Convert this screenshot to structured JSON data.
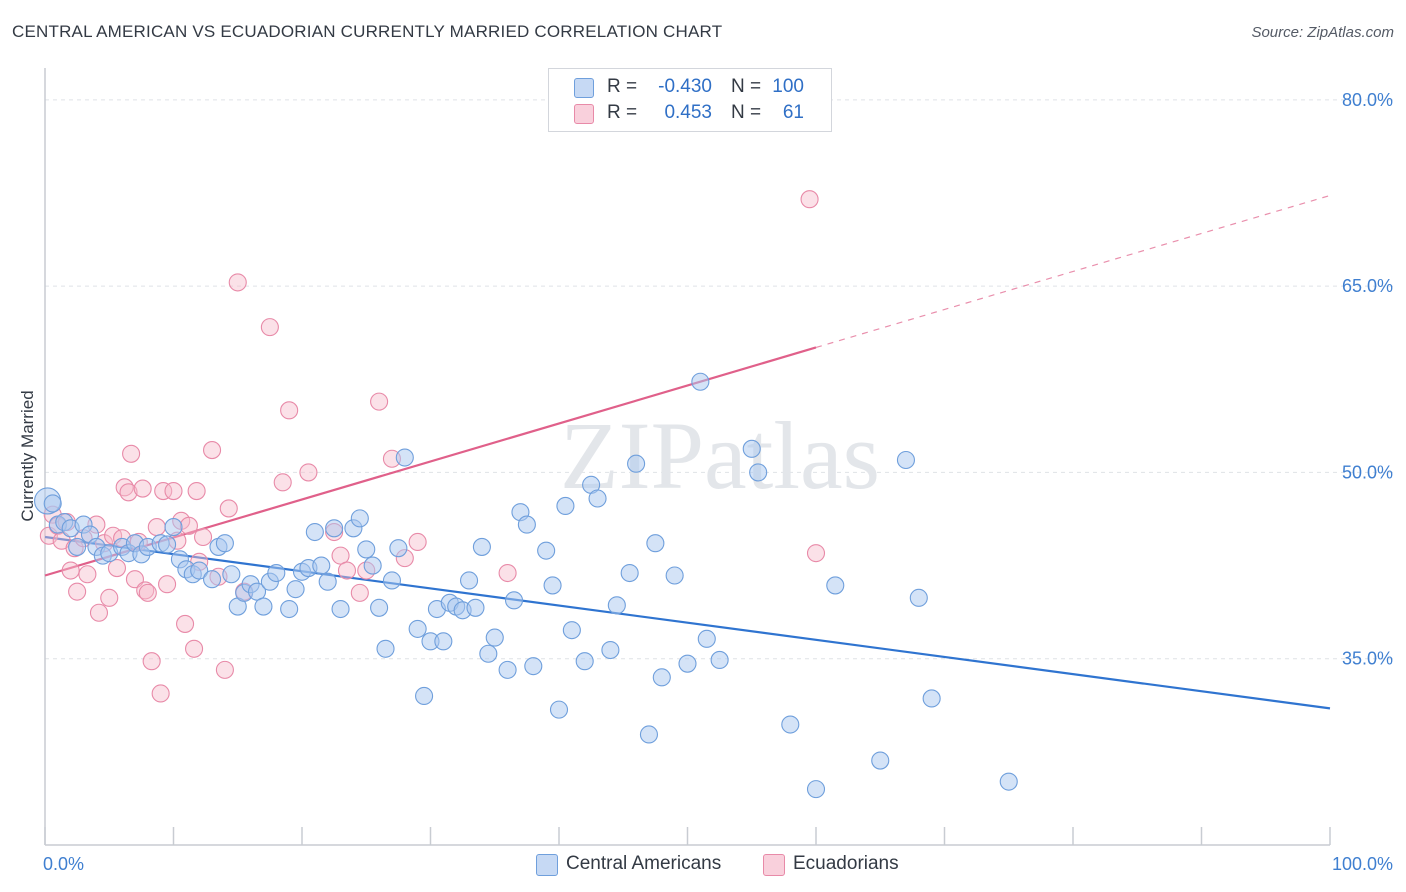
{
  "title": "CENTRAL AMERICAN VS ECUADORIAN CURRENTLY MARRIED CORRELATION CHART",
  "source": "Source: ZipAtlas.com",
  "watermark": "ZIPatlas",
  "colors": {
    "blue_fill": "#a9c8f0",
    "blue_stroke": "#6f9fdc",
    "blue_line": "#2f74d0",
    "pink_fill": "#f6bccd",
    "pink_stroke": "#e88aa8",
    "pink_line": "#e0608a",
    "tick_text": "#3f7fd0",
    "grid": "#dfe2e6"
  },
  "legend": {
    "rows": [
      {
        "r_label": "R = ",
        "r_value": "-0.430",
        "n_label": "N = ",
        "n_value": "100",
        "series": "blue"
      },
      {
        "r_label": "R = ",
        "r_value": "0.453",
        "n_label": "N = ",
        "n_value": "61",
        "series": "pink"
      }
    ]
  },
  "bottom_legend": [
    {
      "label": "Central Americans",
      "series": "blue"
    },
    {
      "label": "Ecuadorians",
      "series": "pink"
    }
  ],
  "chart_data": {
    "type": "scatter",
    "ylabel": "Currently Married",
    "xlabel": "",
    "x_ticks": [
      "0.0%",
      "100.0%"
    ],
    "y_ticks": [
      "80.0%",
      "65.0%",
      "50.0%",
      "35.0%"
    ],
    "y_tick_values": [
      80,
      65,
      50,
      35
    ],
    "xlim": [
      0,
      100
    ],
    "ylim": [
      20,
      82
    ],
    "grid": true,
    "legend_position": "top-center",
    "series": [
      {
        "name": "Central Americans",
        "color": "blue",
        "r": -0.43,
        "n": 100,
        "trend": {
          "x0": 0,
          "y0": 44.8,
          "x1": 100,
          "y1": 31.0
        },
        "points": [
          [
            0.2,
            47.7
          ],
          [
            0.6,
            47.5
          ],
          [
            1.0,
            45.8
          ],
          [
            1.5,
            46.0
          ],
          [
            2.0,
            45.5
          ],
          [
            2.5,
            44.0
          ],
          [
            3.0,
            45.8
          ],
          [
            3.5,
            45.0
          ],
          [
            4.0,
            44.0
          ],
          [
            4.5,
            43.3
          ],
          [
            5.0,
            43.5
          ],
          [
            6.0,
            44.0
          ],
          [
            6.5,
            43.5
          ],
          [
            7.0,
            44.3
          ],
          [
            7.5,
            43.4
          ],
          [
            8.0,
            44.0
          ],
          [
            9.0,
            44.3
          ],
          [
            9.5,
            44.2
          ],
          [
            10.0,
            45.6
          ],
          [
            10.5,
            43.0
          ],
          [
            11.0,
            42.2
          ],
          [
            11.5,
            41.8
          ],
          [
            12.0,
            42.1
          ],
          [
            13.0,
            41.4
          ],
          [
            13.5,
            44.0
          ],
          [
            14.0,
            44.3
          ],
          [
            14.5,
            41.8
          ],
          [
            15.0,
            39.2
          ],
          [
            15.5,
            40.3
          ],
          [
            16.0,
            41.0
          ],
          [
            16.5,
            40.4
          ],
          [
            17.0,
            39.2
          ],
          [
            17.5,
            41.2
          ],
          [
            18.0,
            41.9
          ],
          [
            19.0,
            39.0
          ],
          [
            19.5,
            40.6
          ],
          [
            20.0,
            42.0
          ],
          [
            20.5,
            42.3
          ],
          [
            21.0,
            45.2
          ],
          [
            21.5,
            42.5
          ],
          [
            22.0,
            41.2
          ],
          [
            22.5,
            45.5
          ],
          [
            23.0,
            39.0
          ],
          [
            24.0,
            45.5
          ],
          [
            24.5,
            46.3
          ],
          [
            25.0,
            43.8
          ],
          [
            25.5,
            42.5
          ],
          [
            26.0,
            39.1
          ],
          [
            26.5,
            35.8
          ],
          [
            27.0,
            41.3
          ],
          [
            27.5,
            43.9
          ],
          [
            28.0,
            51.2
          ],
          [
            29.0,
            37.4
          ],
          [
            29.5,
            32.0
          ],
          [
            30.0,
            36.4
          ],
          [
            30.5,
            39.0
          ],
          [
            31.0,
            36.4
          ],
          [
            31.5,
            39.5
          ],
          [
            32.0,
            39.2
          ],
          [
            32.5,
            38.9
          ],
          [
            33.0,
            41.3
          ],
          [
            33.5,
            39.1
          ],
          [
            34.0,
            44.0
          ],
          [
            34.5,
            35.4
          ],
          [
            35.0,
            36.7
          ],
          [
            36.0,
            34.1
          ],
          [
            36.5,
            39.7
          ],
          [
            37.0,
            46.8
          ],
          [
            37.5,
            45.8
          ],
          [
            38.0,
            34.4
          ],
          [
            39.0,
            43.7
          ],
          [
            39.5,
            40.9
          ],
          [
            40.0,
            30.9
          ],
          [
            40.5,
            47.3
          ],
          [
            41.0,
            37.3
          ],
          [
            42.0,
            34.8
          ],
          [
            42.5,
            49.0
          ],
          [
            43.0,
            47.9
          ],
          [
            44.0,
            35.7
          ],
          [
            44.5,
            39.3
          ],
          [
            45.5,
            41.9
          ],
          [
            46.0,
            50.7
          ],
          [
            47.0,
            28.9
          ],
          [
            47.5,
            44.3
          ],
          [
            48.0,
            33.5
          ],
          [
            49.0,
            41.7
          ],
          [
            50.0,
            34.6
          ],
          [
            51.0,
            57.3
          ],
          [
            51.5,
            36.6
          ],
          [
            52.5,
            34.9
          ],
          [
            55.0,
            51.9
          ],
          [
            55.5,
            50.0
          ],
          [
            58.0,
            29.7
          ],
          [
            60.0,
            24.5
          ],
          [
            61.5,
            40.9
          ],
          [
            65.0,
            26.8
          ],
          [
            67.0,
            51.0
          ],
          [
            68.0,
            39.9
          ],
          [
            69.0,
            31.8
          ],
          [
            75.0,
            25.1
          ]
        ]
      },
      {
        "name": "Ecuadorians",
        "color": "pink",
        "r": 0.453,
        "n": 61,
        "trend": {
          "x0": 0,
          "y0": 41.7,
          "x1": 100,
          "y1": 72.3,
          "solid_until_x": 60
        },
        "points": [
          [
            0.3,
            44.9
          ],
          [
            0.6,
            46.6
          ],
          [
            1.0,
            45.7
          ],
          [
            1.3,
            44.5
          ],
          [
            1.7,
            46.0
          ],
          [
            2.0,
            42.1
          ],
          [
            2.3,
            43.9
          ],
          [
            2.5,
            40.4
          ],
          [
            3.0,
            44.7
          ],
          [
            3.3,
            41.8
          ],
          [
            4.0,
            45.8
          ],
          [
            4.2,
            38.7
          ],
          [
            4.6,
            44.3
          ],
          [
            5.0,
            39.9
          ],
          [
            5.3,
            44.9
          ],
          [
            5.6,
            42.3
          ],
          [
            6.0,
            44.7
          ],
          [
            6.2,
            48.8
          ],
          [
            6.5,
            48.4
          ],
          [
            6.7,
            51.5
          ],
          [
            7.0,
            41.4
          ],
          [
            7.3,
            44.4
          ],
          [
            7.6,
            48.7
          ],
          [
            7.8,
            40.5
          ],
          [
            8.0,
            40.3
          ],
          [
            8.3,
            34.8
          ],
          [
            8.7,
            45.6
          ],
          [
            9.0,
            32.2
          ],
          [
            9.2,
            48.5
          ],
          [
            9.5,
            41.0
          ],
          [
            10.0,
            48.5
          ],
          [
            10.3,
            44.5
          ],
          [
            10.6,
            46.1
          ],
          [
            10.9,
            37.8
          ],
          [
            11.2,
            45.7
          ],
          [
            11.6,
            35.8
          ],
          [
            11.8,
            48.5
          ],
          [
            12.0,
            42.8
          ],
          [
            12.3,
            44.8
          ],
          [
            13.0,
            51.8
          ],
          [
            13.5,
            41.6
          ],
          [
            14.0,
            34.1
          ],
          [
            14.3,
            47.1
          ],
          [
            15.0,
            65.3
          ],
          [
            15.5,
            40.4
          ],
          [
            17.5,
            61.7
          ],
          [
            18.5,
            49.2
          ],
          [
            19.0,
            55.0
          ],
          [
            20.5,
            50.0
          ],
          [
            22.5,
            45.2
          ],
          [
            23.0,
            43.3
          ],
          [
            23.5,
            42.1
          ],
          [
            24.5,
            40.3
          ],
          [
            25.0,
            42.1
          ],
          [
            26.0,
            55.7
          ],
          [
            27.0,
            51.1
          ],
          [
            28.0,
            43.1
          ],
          [
            29.0,
            44.4
          ],
          [
            36.0,
            41.9
          ],
          [
            59.5,
            72.0
          ],
          [
            60.0,
            43.5
          ]
        ]
      }
    ]
  }
}
